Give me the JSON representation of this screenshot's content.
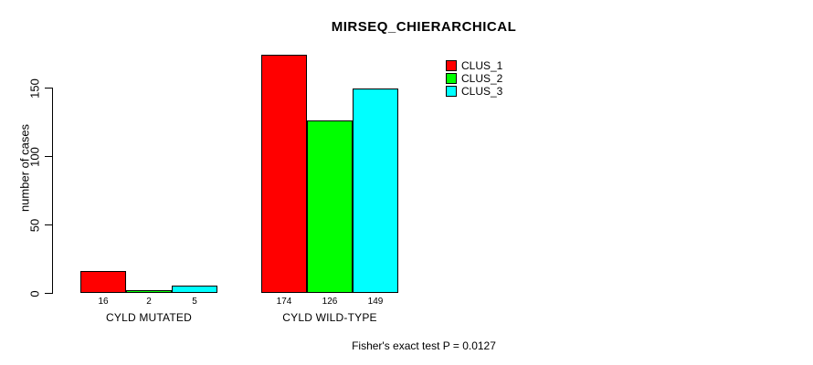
{
  "chart_data": {
    "type": "bar",
    "title": "MIRSEQ_CHIERARCHICAL",
    "xlabel": "",
    "ylabel": "number of cases",
    "categories": [
      "CYLD MUTATED",
      "CYLD WILD-TYPE"
    ],
    "series": [
      {
        "name": "CLUS_1",
        "color": "#ff0000",
        "values": [
          16,
          174
        ]
      },
      {
        "name": "CLUS_2",
        "color": "#00ff00",
        "values": [
          2,
          126
        ]
      },
      {
        "name": "CLUS_3",
        "color": "#00ffff",
        "values": [
          5,
          149
        ]
      }
    ],
    "yticks": [
      0,
      50,
      100,
      150
    ],
    "ylim": [
      0,
      175
    ],
    "grid": false,
    "bar_value_labels": true,
    "legend_position": "top-right",
    "legend_entries": [
      "CLUS_1",
      "CLUS_2",
      "CLUS_3"
    ],
    "annotation": "Fisher's exact test P = 0.0127",
    "background_color": "#ffffff",
    "axis_color": "#000000",
    "bar_border_color": "#000000"
  }
}
